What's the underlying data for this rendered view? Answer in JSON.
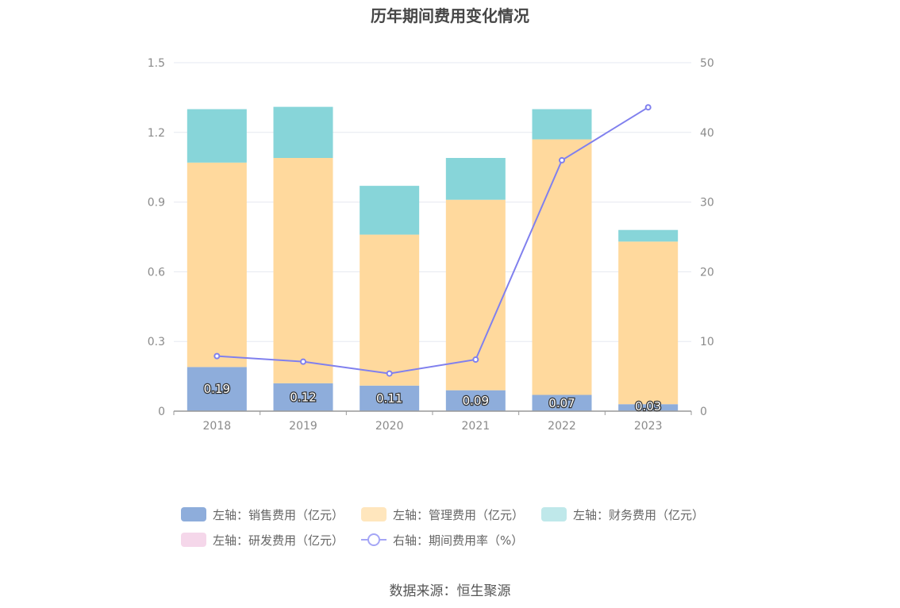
{
  "chart_data": {
    "type": "bar",
    "title": "历年期间费用变化情况",
    "categories": [
      "2018",
      "2019",
      "2020",
      "2021",
      "2022",
      "2023"
    ],
    "stacked": true,
    "series": [
      {
        "name": "左轴：销售费用（亿元）",
        "axis": "left",
        "values": [
          0.19,
          0.12,
          0.11,
          0.09,
          0.07,
          0.03
        ],
        "color": "#8eaddb",
        "labels": [
          "0.19",
          "0.12",
          "0.11",
          "0.09",
          "0.07",
          "0.03"
        ]
      },
      {
        "name": "左轴：管理费用（亿元）",
        "axis": "left",
        "values": [
          0.88,
          0.97,
          0.65,
          0.82,
          1.1,
          0.7
        ],
        "color": "#ffd99d"
      },
      {
        "name": "左轴：财务费用（亿元）",
        "axis": "left",
        "values": [
          0.23,
          0.22,
          0.21,
          0.18,
          0.13,
          0.05
        ],
        "color": "#87d5d9"
      },
      {
        "name": "左轴：研发费用（亿元）",
        "axis": "left",
        "values": [
          0,
          0,
          0,
          0,
          0,
          0
        ],
        "color": "#f5d7ea"
      },
      {
        "name": "右轴：期间费用率（%）",
        "axis": "right",
        "type": "line",
        "values": [
          7.9,
          7.1,
          5.4,
          7.4,
          36.0,
          43.6
        ],
        "color": "#8080ee"
      }
    ],
    "left_axis": {
      "min": 0,
      "max": 1.5,
      "ticks": [
        "0",
        "0.3",
        "0.6",
        "0.9",
        "1.2",
        "1.5"
      ]
    },
    "right_axis": {
      "min": 0,
      "max": 50,
      "ticks": [
        "0",
        "10",
        "20",
        "30",
        "40",
        "50"
      ]
    },
    "legend_position": "bottom"
  },
  "legend": {
    "row1": [
      "左轴：销售费用（亿元）",
      "左轴：管理费用（亿元）",
      "左轴：财务费用（亿元）"
    ],
    "row2": [
      "左轴：研发费用（亿元）",
      "右轴：期间费用率（%）"
    ]
  },
  "source": "数据来源：恒生聚源"
}
